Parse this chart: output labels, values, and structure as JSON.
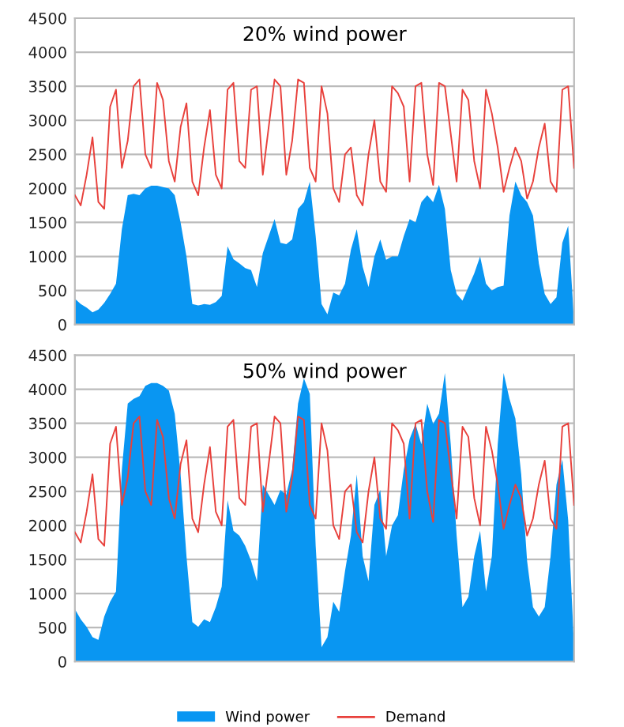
{
  "chart_data": [
    {
      "type": "area",
      "title": "20% wind power",
      "categories": [
        null,
        null,
        null,
        null,
        null,
        null,
        null,
        null,
        null,
        null,
        null,
        null,
        null,
        null,
        null,
        null,
        null,
        null,
        null,
        null,
        null,
        null,
        null,
        null,
        null,
        null,
        null,
        null,
        null,
        null,
        null,
        null,
        null,
        null,
        null,
        null,
        null,
        null,
        null,
        null,
        null,
        null,
        null,
        null,
        null,
        null,
        null,
        null,
        null,
        null,
        null,
        null,
        null,
        null,
        null,
        null,
        null,
        null,
        null,
        null,
        null,
        null,
        null,
        null,
        null,
        null,
        null,
        null,
        null,
        null,
        null,
        null,
        null,
        null,
        null,
        null,
        null,
        null,
        null,
        null,
        null,
        null,
        null,
        null,
        null,
        null
      ],
      "ylim": [
        0,
        4500
      ],
      "yticks": [
        0,
        500,
        1000,
        1500,
        2000,
        2500,
        3000,
        3500,
        4000,
        4500
      ],
      "grid": "y",
      "legend": false,
      "series": [
        {
          "color": "#0996f2",
          "values": [
            380,
            300,
            250,
            180,
            220,
            320,
            450,
            600,
            1400,
            1900,
            1920,
            1900,
            2000,
            2040,
            2040,
            2020,
            2000,
            1900,
            1500,
            1000,
            300,
            280,
            300,
            290,
            330,
            420,
            1150,
            960,
            900,
            830,
            800,
            550,
            1050,
            1300,
            1550,
            1200,
            1180,
            1250,
            1700,
            1800,
            2100,
            1300,
            300,
            150,
            470,
            430,
            600,
            1100,
            1400,
            850,
            550,
            1000,
            1250,
            950,
            1000,
            1000,
            1300,
            1550,
            1500,
            1800,
            1900,
            1800,
            2050,
            1700,
            800,
            450,
            350,
            550,
            750,
            1000,
            600,
            500,
            550,
            570,
            1600,
            2100,
            1900,
            1800,
            1600,
            900,
            450,
            300,
            400,
            1200,
            1450,
            40
          ]
        },
        {
          "type": "line",
          "color": "#e8413c",
          "values": [
            1900,
            1750,
            2200,
            2750,
            1800,
            1700,
            3200,
            3450,
            2300,
            2700,
            3500,
            3600,
            2500,
            2300,
            3550,
            3300,
            2400,
            2100,
            2900,
            3250,
            2100,
            1900,
            2600,
            3150,
            2200,
            2000,
            3450,
            3550,
            2400,
            2300,
            3450,
            3500,
            2200,
            2900,
            3600,
            3500,
            2200,
            2700,
            3600,
            3550,
            2300,
            2100,
            3500,
            3100,
            2000,
            1800,
            2500,
            2600,
            1900,
            1750,
            2500,
            3000,
            2100,
            1950,
            3500,
            3400,
            3200,
            2100,
            3500,
            3550,
            2500,
            2050,
            3550,
            3500,
            2800,
            2100,
            3450,
            3300,
            2400,
            2000,
            3450,
            3100,
            2600,
            1950,
            2300,
            2600,
            2400,
            1850,
            2100,
            2600,
            2950,
            2100,
            1950,
            3450,
            3500,
            2300
          ]
        }
      ]
    },
    {
      "type": "area",
      "title": "50% wind power",
      "categories": [
        null,
        null,
        null,
        null,
        null,
        null,
        null,
        null,
        null,
        null,
        null,
        null,
        null,
        null,
        null,
        null,
        null,
        null,
        null,
        null,
        null,
        null,
        null,
        null,
        null,
        null,
        null,
        null,
        null,
        null,
        null,
        null,
        null,
        null,
        null,
        null,
        null,
        null,
        null,
        null,
        null,
        null,
        null,
        null,
        null,
        null,
        null,
        null,
        null,
        null,
        null,
        null,
        null,
        null,
        null,
        null,
        null,
        null,
        null,
        null,
        null,
        null,
        null,
        null,
        null,
        null,
        null,
        null,
        null,
        null,
        null,
        null,
        null,
        null,
        null,
        null,
        null,
        null,
        null,
        null,
        null,
        null,
        null,
        null,
        null,
        null
      ],
      "ylim": [
        0,
        4500
      ],
      "yticks": [
        0,
        500,
        1000,
        1500,
        2000,
        2500,
        3000,
        3500,
        4000,
        4500
      ],
      "grid": "y",
      "legend": "bottom",
      "series": [
        {
          "name": "Wind power",
          "color": "#0996f2",
          "values": [
            770,
            620,
            510,
            360,
            320,
            660,
            880,
            1030,
            2820,
            3790,
            3860,
            3900,
            4050,
            4090,
            4090,
            4050,
            3980,
            3640,
            2750,
            1550,
            580,
            510,
            620,
            580,
            800,
            1100,
            2370,
            1920,
            1850,
            1700,
            1480,
            1180,
            2600,
            2450,
            2300,
            2520,
            2450,
            2820,
            3790,
            4160,
            3930,
            1700,
            210,
            360,
            880,
            730,
            1330,
            1850,
            2750,
            1550,
            1180,
            2300,
            2520,
            1550,
            2000,
            2150,
            2820,
            3270,
            3490,
            3190,
            3790,
            3490,
            3640,
            4240,
            3190,
            1850,
            800,
            950,
            1550,
            1920,
            1030,
            1550,
            3190,
            4240,
            3860,
            3570,
            2750,
            1480,
            800,
            660,
            800,
            1550,
            2600,
            2970,
            2070,
            210
          ]
        },
        {
          "type": "line",
          "name": "Demand",
          "color": "#e8413c",
          "values": [
            1900,
            1750,
            2200,
            2750,
            1800,
            1700,
            3200,
            3450,
            2300,
            2700,
            3500,
            3600,
            2500,
            2300,
            3550,
            3300,
            2400,
            2100,
            2900,
            3250,
            2100,
            1900,
            2600,
            3150,
            2200,
            2000,
            3450,
            3550,
            2400,
            2300,
            3450,
            3500,
            2200,
            2900,
            3600,
            3500,
            2200,
            2700,
            3600,
            3550,
            2300,
            2100,
            3500,
            3100,
            2000,
            1800,
            2500,
            2600,
            1900,
            1750,
            2500,
            3000,
            2100,
            1950,
            3500,
            3400,
            3200,
            2100,
            3500,
            3550,
            2500,
            2050,
            3550,
            3500,
            2800,
            2100,
            3450,
            3300,
            2400,
            2000,
            3450,
            3100,
            2600,
            1950,
            2300,
            2600,
            2400,
            1850,
            2100,
            2600,
            2950,
            2100,
            1950,
            3450,
            3500,
            2300
          ]
        }
      ]
    }
  ]
}
